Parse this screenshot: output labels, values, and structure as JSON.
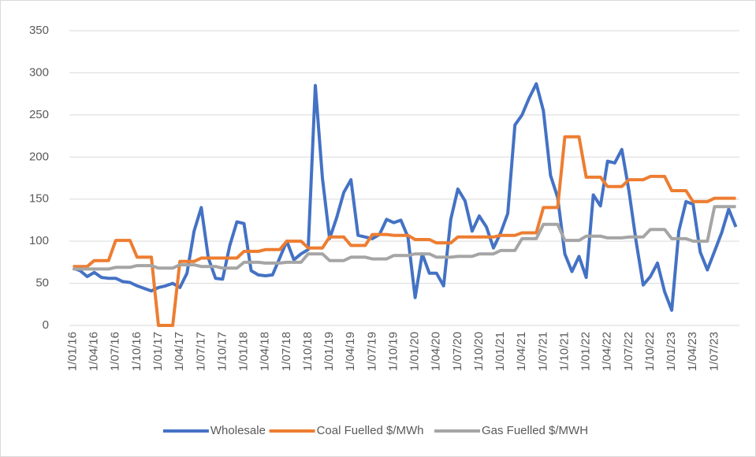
{
  "chart_data": {
    "type": "line",
    "categories": [
      "1/01/16",
      null,
      null,
      "1/04/16",
      null,
      null,
      "1/07/16",
      null,
      null,
      "1/10/16",
      null,
      null,
      "1/01/17",
      null,
      null,
      "1/04/17",
      null,
      null,
      "1/07/17",
      null,
      null,
      "1/10/17",
      null,
      null,
      "1/01/18",
      null,
      null,
      "1/04/18",
      null,
      null,
      "1/07/18",
      null,
      null,
      "1/10/18",
      null,
      null,
      "1/01/19",
      null,
      null,
      "1/04/19",
      null,
      null,
      "1/07/19",
      null,
      null,
      "1/10/19",
      null,
      null,
      "1/01/20",
      null,
      null,
      "1/04/20",
      null,
      null,
      "1/07/20",
      null,
      null,
      "1/10/20",
      null,
      null,
      "1/01/21",
      null,
      null,
      "1/04/21",
      null,
      null,
      "1/07/21",
      null,
      null,
      "1/10/21",
      null,
      null,
      "1/01/22",
      null,
      null,
      "1/04/22",
      null,
      null,
      "1/07/22",
      null,
      null,
      "1/10/22",
      null,
      null,
      "1/01/23",
      null,
      null,
      "1/04/23",
      null,
      null,
      "1/07/23",
      null,
      null,
      null
    ],
    "series": [
      {
        "name": "Wholesale",
        "color": "#4472c4",
        "values": [
          68,
          65,
          58,
          63,
          57,
          56,
          56,
          52,
          51,
          47,
          44,
          41,
          45,
          47,
          50,
          45,
          62,
          112,
          140,
          80,
          56,
          55,
          95,
          123,
          121,
          65,
          60,
          59,
          60,
          80,
          100,
          78,
          85,
          90,
          285,
          175,
          103,
          128,
          158,
          173,
          107,
          105,
          103,
          108,
          126,
          122,
          125,
          105,
          33,
          85,
          62,
          62,
          47,
          126,
          162,
          148,
          112,
          130,
          117,
          92,
          110,
          133,
          238,
          250,
          270,
          287,
          255,
          178,
          152,
          85,
          64,
          82,
          57,
          155,
          142,
          195,
          193,
          209,
          160,
          100,
          48,
          58,
          74,
          40,
          18,
          112,
          147,
          144,
          87,
          66,
          88,
          110,
          138,
          117
        ]
      },
      {
        "name": "Coal Fuelled $/MWh",
        "color": "#ed7d31",
        "values": [
          70,
          70,
          70,
          77,
          77,
          77,
          101,
          101,
          101,
          81,
          81,
          81,
          0,
          0,
          0,
          76,
          76,
          76,
          80,
          80,
          80,
          80,
          80,
          80,
          88,
          88,
          88,
          90,
          90,
          90,
          100,
          100,
          100,
          92,
          92,
          92,
          105,
          105,
          105,
          95,
          95,
          95,
          108,
          108,
          108,
          107,
          107,
          107,
          102,
          102,
          102,
          98,
          98,
          98,
          105,
          105,
          105,
          105,
          105,
          105,
          107,
          107,
          107,
          110,
          110,
          110,
          140,
          140,
          140,
          224,
          224,
          224,
          176,
          176,
          176,
          165,
          165,
          165,
          173,
          173,
          173,
          177,
          177,
          177,
          160,
          160,
          160,
          147,
          147,
          147,
          151,
          151,
          151,
          151
        ]
      },
      {
        "name": "Gas Fuelled $/MWH",
        "color": "#a5a5a5",
        "values": [
          67,
          67,
          67,
          67,
          67,
          67,
          69,
          69,
          69,
          71,
          71,
          71,
          68,
          68,
          68,
          72,
          72,
          72,
          70,
          70,
          70,
          68,
          68,
          68,
          75,
          75,
          75,
          74,
          74,
          74,
          75,
          75,
          75,
          85,
          85,
          85,
          77,
          77,
          77,
          81,
          81,
          81,
          79,
          79,
          79,
          83,
          83,
          83,
          85,
          85,
          85,
          81,
          81,
          81,
          82,
          82,
          82,
          85,
          85,
          85,
          89,
          89,
          89,
          103,
          103,
          103,
          120,
          120,
          120,
          101,
          101,
          101,
          106,
          106,
          106,
          104,
          104,
          104,
          105,
          105,
          105,
          114,
          114,
          114,
          103,
          103,
          103,
          100,
          100,
          100,
          141,
          141,
          141,
          141
        ]
      }
    ],
    "ylim": [
      0,
      350
    ],
    "yticks": [
      0,
      50,
      100,
      150,
      200,
      250,
      300,
      350
    ],
    "grid": true,
    "legend": "bottom"
  }
}
